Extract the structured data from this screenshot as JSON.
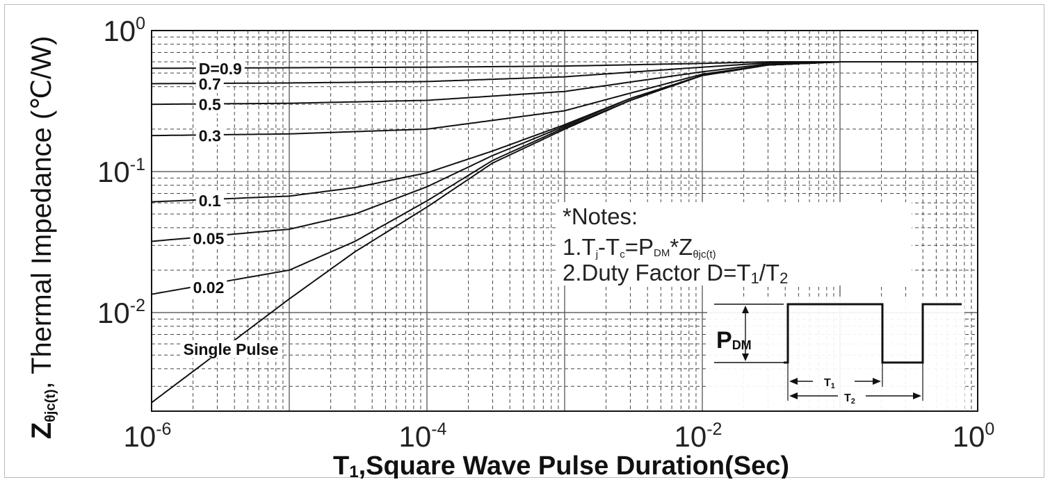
{
  "chart_data": {
    "type": "line",
    "x_scale": "log",
    "y_scale": "log",
    "xlim": [
      1e-06,
      1
    ],
    "ylim": [
      0.002,
      1
    ],
    "x_ticks": [
      {
        "value": 1e-06,
        "base": "10",
        "exp": "-6"
      },
      {
        "value": 0.0001,
        "base": "10",
        "exp": "-4"
      },
      {
        "value": 0.01,
        "base": "10",
        "exp": "-2"
      },
      {
        "value": 1,
        "base": "10",
        "exp": "0"
      }
    ],
    "y_ticks": [
      {
        "value": 1,
        "base": "10",
        "exp": "0"
      },
      {
        "value": 0.1,
        "base": "10",
        "exp": "-1"
      },
      {
        "value": 0.01,
        "base": "10",
        "exp": "-2"
      }
    ],
    "xlabel": {
      "main": "T",
      "sub": "1",
      "rest": ",Square Wave Pulse Duration(Sec)"
    },
    "ylabel": {
      "main": "Z",
      "sub": "θjc(t)",
      "rest": ", Thermal Impedance (℃/W)"
    },
    "grid": true,
    "series": [
      {
        "name": "D=0.9",
        "x": [
          1e-06,
          1e-05,
          0.0001,
          0.001,
          0.01,
          0.03,
          0.1,
          1
        ],
        "y": [
          0.54,
          0.545,
          0.55,
          0.56,
          0.585,
          0.6,
          0.6,
          0.6
        ]
      },
      {
        "name": "0.7",
        "x": [
          1e-06,
          1e-05,
          0.0001,
          0.001,
          0.01,
          0.03,
          0.1,
          1
        ],
        "y": [
          0.42,
          0.425,
          0.435,
          0.47,
          0.55,
          0.59,
          0.6,
          0.6
        ]
      },
      {
        "name": "0.5",
        "x": [
          1e-06,
          1e-05,
          0.0001,
          0.001,
          0.01,
          0.03,
          0.1,
          1
        ],
        "y": [
          0.3,
          0.305,
          0.32,
          0.37,
          0.51,
          0.58,
          0.6,
          0.6
        ]
      },
      {
        "name": "0.3",
        "x": [
          1e-06,
          1e-05,
          0.0001,
          0.001,
          0.003,
          0.01,
          0.03,
          0.1,
          1
        ],
        "y": [
          0.18,
          0.185,
          0.2,
          0.27,
          0.36,
          0.49,
          0.57,
          0.6,
          0.6
        ]
      },
      {
        "name": "0.1",
        "x": [
          1e-06,
          1e-05,
          3e-05,
          0.0001,
          0.0003,
          0.001,
          0.003,
          0.01,
          0.03,
          0.1,
          1
        ],
        "y": [
          0.061,
          0.067,
          0.077,
          0.098,
          0.14,
          0.215,
          0.33,
          0.48,
          0.57,
          0.6,
          0.6
        ]
      },
      {
        "name": "0.05",
        "x": [
          1e-06,
          1e-05,
          3e-05,
          0.0001,
          0.0003,
          0.001,
          0.003,
          0.01,
          0.03,
          0.1,
          1
        ],
        "y": [
          0.032,
          0.039,
          0.05,
          0.078,
          0.13,
          0.21,
          0.33,
          0.48,
          0.57,
          0.6,
          0.6
        ]
      },
      {
        "name": "0.02",
        "x": [
          1e-06,
          1e-05,
          3e-05,
          0.0001,
          0.0003,
          0.001,
          0.003,
          0.01,
          0.03,
          0.1,
          1
        ],
        "y": [
          0.0135,
          0.02,
          0.032,
          0.062,
          0.12,
          0.205,
          0.32,
          0.48,
          0.57,
          0.6,
          0.6
        ]
      },
      {
        "name": "Single Pulse",
        "x": [
          1e-06,
          1e-05,
          3e-05,
          0.0001,
          0.0003,
          0.001,
          0.003,
          0.01,
          0.03,
          0.1,
          1
        ],
        "y": [
          0.0023,
          0.0125,
          0.027,
          0.056,
          0.115,
          0.2,
          0.32,
          0.48,
          0.57,
          0.6,
          0.6
        ]
      }
    ],
    "curve_labels": [
      {
        "text": "D=0.9",
        "series": 0
      },
      {
        "text": "0.7",
        "series": 1
      },
      {
        "text": "0.5",
        "series": 2
      },
      {
        "text": "0.3",
        "series": 3
      },
      {
        "text": "0.1",
        "series": 4
      },
      {
        "text": "0.05",
        "series": 5
      },
      {
        "text": "0.02",
        "series": 6
      },
      {
        "text": "Single Pulse",
        "series": 7
      }
    ],
    "notes": {
      "title": "*Notes:",
      "line1": {
        "a": "1.T",
        "a_sub": "j",
        "b": "-T",
        "b_sub": "c",
        "c": "=P",
        "c_sub": "DM",
        "d": "*Z",
        "d_sub": "θjc(t)"
      },
      "line2": {
        "a": "2.Duty Factor D=T",
        "a_sub": "1",
        "b": "/T",
        "b_sub": "2"
      }
    },
    "inset": {
      "pdm_main": "P",
      "pdm_sub": "DM",
      "t1_main": "T",
      "t1_sub": "1",
      "t2_main": "T",
      "t2_sub": "2"
    }
  }
}
